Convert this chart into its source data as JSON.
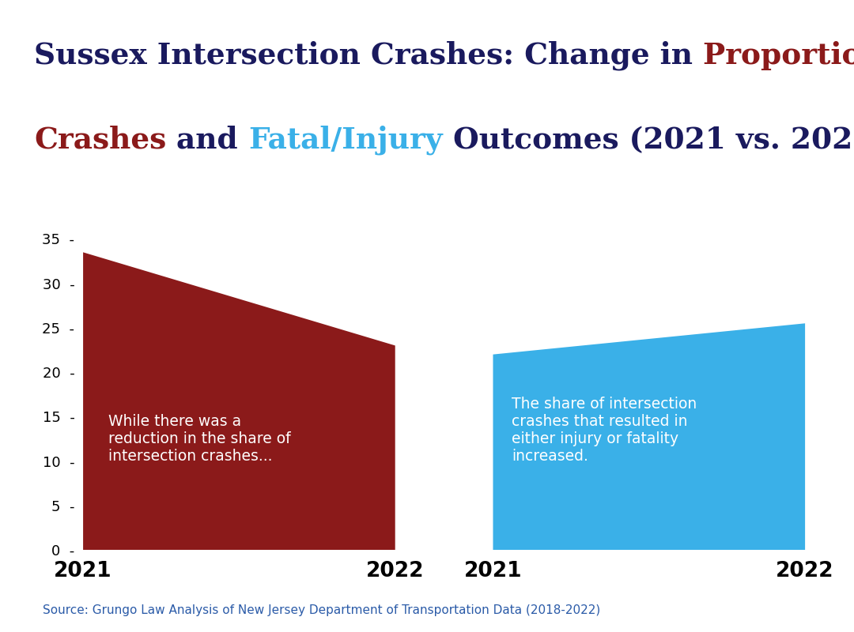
{
  "left_chart": {
    "val2021": 33.5,
    "val2022": 23.0,
    "color": "#8b1a1a",
    "annotation": "While there was a\nreduction in the share of\nintersection crashes...",
    "xlabel_2021": "2021",
    "xlabel_2022": "2022"
  },
  "right_chart": {
    "val2021": 22.0,
    "val2022": 25.5,
    "color": "#3ab0e8",
    "annotation": "The share of intersection\ncrashes that resulted in\neither injury or fatality\nincreased.",
    "xlabel_2021": "2021",
    "xlabel_2022": "2022"
  },
  "ylim": [
    0,
    37
  ],
  "yticks": [
    0,
    5,
    10,
    15,
    20,
    25,
    30,
    35
  ],
  "background_color": "#ffffff",
  "source_text": "Source: Grungo Law Analysis of New Jersey Department of Transportation Data (2018-2022)",
  "source_color": "#2b5ba8",
  "annotation_color": "#ffffff",
  "annotation_fontsize": 13.5,
  "title_fontsize": 27,
  "title_color_main": "#1a1a5e",
  "title_color_red": "#8b1a1a",
  "title_color_blue": "#3ab0e8"
}
